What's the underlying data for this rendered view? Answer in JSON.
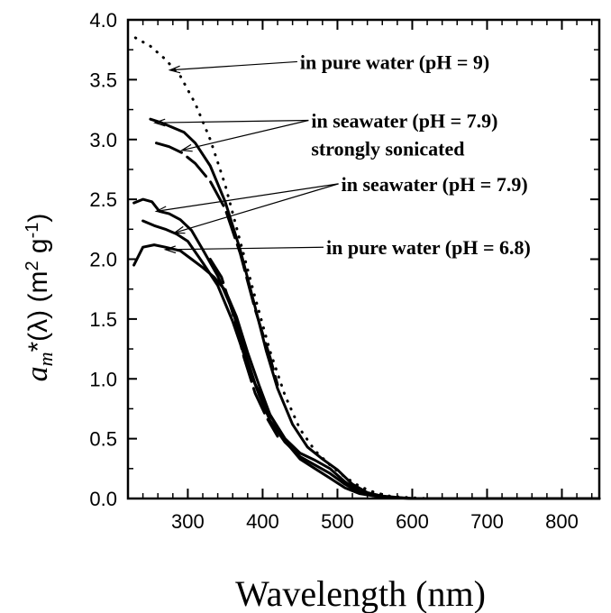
{
  "chart_data": {
    "type": "line",
    "title": "",
    "xlabel": "Wavelength (nm)",
    "ylabel": {
      "symbol": "a",
      "subscript": "m",
      "rest": "*(λ) (m",
      "sup1": "2",
      "mid": " g",
      "sup2": "-1",
      "end": ")"
    },
    "xlim": [
      220,
      850
    ],
    "ylim": [
      0,
      4.0
    ],
    "x_ticks": [
      300,
      400,
      500,
      600,
      700,
      800
    ],
    "y_ticks": [
      "0.0",
      "0.5",
      "1.0",
      "1.5",
      "2.0",
      "2.5",
      "3.0",
      "3.5",
      "4.0"
    ],
    "grid": false,
    "series": [
      {
        "style": "dotted",
        "x": [
          230,
          250,
          270,
          290,
          310,
          330,
          350,
          370,
          390,
          410,
          430,
          450,
          470,
          490,
          510,
          530,
          550,
          570,
          590,
          620,
          650,
          700,
          750,
          800,
          850
        ],
        "y": [
          3.85,
          3.78,
          3.67,
          3.53,
          3.3,
          3.0,
          2.62,
          2.15,
          1.68,
          1.23,
          0.86,
          0.58,
          0.4,
          0.28,
          0.18,
          0.1,
          0.05,
          0.02,
          0.01,
          0.0,
          0.0,
          0.0,
          0.0,
          0.0,
          0.0
        ]
      },
      {
        "style": "solid",
        "x": [
          250,
          265,
          280,
          295,
          310,
          330,
          350,
          370,
          390,
          405,
          420,
          440,
          460,
          480,
          500,
          520,
          540,
          560,
          580,
          600,
          650,
          700,
          750,
          800,
          850
        ],
        "y": [
          3.17,
          3.14,
          3.1,
          3.06,
          2.97,
          2.78,
          2.48,
          2.08,
          1.6,
          1.23,
          0.92,
          0.62,
          0.43,
          0.33,
          0.24,
          0.12,
          0.05,
          0.02,
          0.01,
          0.0,
          0.0,
          0.0,
          0.0,
          0.0,
          0.0
        ]
      },
      {
        "style": "dashed",
        "x": [
          258,
          275,
          292,
          310,
          330,
          350,
          370,
          390,
          410,
          420
        ],
        "y": [
          2.97,
          2.94,
          2.89,
          2.8,
          2.65,
          2.42,
          2.05,
          1.58,
          1.18,
          0.95
        ]
      },
      {
        "style": "solid",
        "x": [
          228,
          240,
          252,
          262,
          275,
          290,
          305,
          320,
          340,
          360,
          375,
          390,
          410,
          430,
          450,
          470,
          490,
          510,
          530,
          550,
          570,
          600,
          650,
          700,
          750,
          800,
          850
        ],
        "y": [
          2.47,
          2.5,
          2.48,
          2.4,
          2.38,
          2.33,
          2.24,
          2.08,
          1.86,
          1.57,
          1.25,
          0.96,
          0.7,
          0.5,
          0.38,
          0.32,
          0.25,
          0.14,
          0.06,
          0.03,
          0.01,
          0.0,
          0.0,
          0.0,
          0.0,
          0.0,
          0.0
        ]
      },
      {
        "style": "solid",
        "x": [
          240,
          255,
          270,
          285,
          300,
          320,
          340,
          360,
          378,
          395,
          410,
          430,
          450,
          470,
          490,
          510,
          530,
          550,
          570
        ],
        "y": [
          2.32,
          2.28,
          2.25,
          2.21,
          2.15,
          1.97,
          1.78,
          1.48,
          1.15,
          0.87,
          0.65,
          0.47,
          0.35,
          0.28,
          0.21,
          0.12,
          0.05,
          0.02,
          0.01
        ]
      },
      {
        "style": "solid",
        "x": [
          228,
          240,
          255,
          270,
          290,
          305,
          320,
          335,
          350,
          365,
          380,
          395,
          410,
          430,
          450,
          470,
          490,
          510,
          530,
          550,
          570,
          600,
          650,
          700,
          750,
          800,
          850
        ],
        "y": [
          1.95,
          2.1,
          2.12,
          2.1,
          2.07,
          2.0,
          1.93,
          1.85,
          1.74,
          1.52,
          1.22,
          0.95,
          0.7,
          0.48,
          0.33,
          0.25,
          0.17,
          0.09,
          0.04,
          0.02,
          0.01,
          0.0,
          0.0,
          0.0,
          0.0,
          0.0,
          0.0
        ]
      },
      {
        "style": "dashed",
        "x": [
          330,
          345,
          360,
          375,
          390,
          405,
          420
        ],
        "y": [
          2.0,
          1.85,
          1.55,
          1.18,
          0.88,
          0.68,
          0.52
        ]
      }
    ],
    "annotations": [
      {
        "lines": [
          "in pure water (pH = 9)"
        ],
        "text_x": 450,
        "text_y": 3.65,
        "targets": [
          [
            276,
            3.58
          ]
        ]
      },
      {
        "lines": [
          "in seawater (pH = 7.9)",
          "strongly sonicated"
        ],
        "text_x": 465,
        "text_y": 3.16,
        "targets": [
          [
            256,
            3.14
          ],
          [
            292,
            2.91
          ]
        ]
      },
      {
        "lines": [
          "in seawater (pH = 7.9)"
        ],
        "text_x": 505,
        "text_y": 2.63,
        "targets": [
          [
            258,
            2.4
          ],
          [
            282,
            2.22
          ]
        ]
      },
      {
        "lines": [
          "in pure water (pH = 6.8)"
        ],
        "text_x": 485,
        "text_y": 2.1,
        "targets": [
          [
            270,
            2.08
          ]
        ]
      }
    ]
  }
}
